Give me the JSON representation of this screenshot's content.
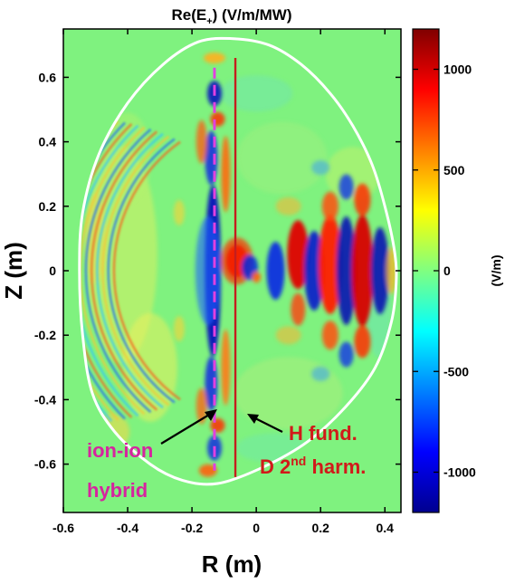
{
  "chart_data": {
    "type": "heatmap",
    "title_main": "Re(E",
    "title_sub": "+",
    "title_tail": ") (V/m/MW)",
    "xlabel": "R (m)",
    "ylabel": "Z (m)",
    "xlim": [
      -0.6,
      0.45
    ],
    "ylim": [
      -0.75,
      0.75
    ],
    "x_ticks": [
      -0.6,
      -0.4,
      -0.2,
      0,
      0.2,
      0.4
    ],
    "x_tick_labels": [
      "-0.6",
      "-0.4",
      "-0.2",
      "0",
      "0.2",
      "0.4"
    ],
    "y_ticks": [
      -0.6,
      -0.4,
      -0.2,
      0,
      0.2,
      0.4,
      0.6
    ],
    "y_tick_labels": [
      "-0.6",
      "-0.4",
      "-0.2",
      "0",
      "0.2",
      "0.4",
      "0.6"
    ],
    "colorbar": {
      "label": "(V/m)",
      "range": [
        -1200,
        1200
      ],
      "ticks": [
        1000,
        500,
        0,
        -500,
        -1000
      ],
      "tick_labels": [
        "1000",
        "500",
        "0",
        "-500",
        "-1000"
      ],
      "colormap": "jet"
    },
    "boundary": [
      [
        -0.07,
        0.72
      ],
      [
        0.04,
        0.7
      ],
      [
        0.14,
        0.64
      ],
      [
        0.23,
        0.55
      ],
      [
        0.3,
        0.45
      ],
      [
        0.36,
        0.33
      ],
      [
        0.4,
        0.2
      ],
      [
        0.43,
        0.06
      ],
      [
        0.435,
        -0.04
      ],
      [
        0.42,
        -0.16
      ],
      [
        0.37,
        -0.3
      ],
      [
        0.28,
        -0.42
      ],
      [
        0.16,
        -0.53
      ],
      [
        0.02,
        -0.61
      ],
      [
        -0.12,
        -0.66
      ],
      [
        -0.23,
        -0.65
      ],
      [
        -0.33,
        -0.6
      ],
      [
        -0.44,
        -0.5
      ],
      [
        -0.51,
        -0.38
      ],
      [
        -0.54,
        -0.2
      ],
      [
        -0.55,
        0.0
      ],
      [
        -0.54,
        0.18
      ],
      [
        -0.49,
        0.36
      ],
      [
        -0.4,
        0.52
      ],
      [
        -0.29,
        0.64
      ],
      [
        -0.18,
        0.71
      ]
    ],
    "resonance_lines": [
      {
        "name": "ion-ion hybrid",
        "x": -0.13,
        "y_range": [
          -0.62,
          0.63
        ],
        "style": "dashed",
        "color": "#e040e0"
      },
      {
        "name": "H fund. D 2nd harm.",
        "x": -0.065,
        "y_range": [
          -0.64,
          0.66
        ],
        "style": "solid",
        "color": "#c41e1e"
      }
    ]
  },
  "annotations": {
    "ion_ion_line1": "ion-ion",
    "ion_ion_line2": "hybrid",
    "h_fund": "H fund.",
    "d_harm_pre": "D 2",
    "d_harm_sup": "nd",
    "d_harm_post": " harm."
  },
  "colors": {
    "background_field": "#7ff27f",
    "boundary": "#ffffff",
    "magenta": "#d6249f",
    "red": "#d11a1a"
  }
}
